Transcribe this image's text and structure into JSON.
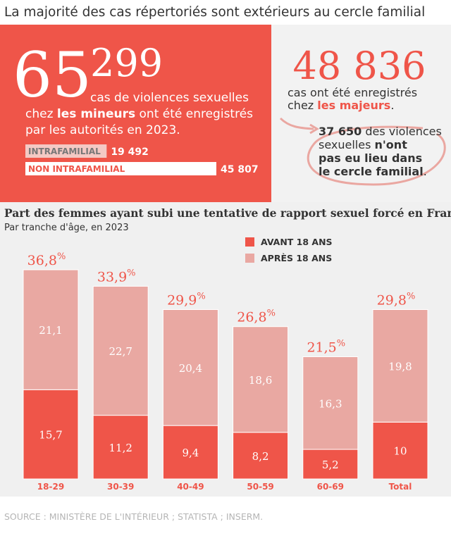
{
  "header": {
    "title": "La majorité des cas répertoriés sont extérieurs au cercle familial"
  },
  "minors": {
    "figure_lead": "65",
    "figure_tail": "299",
    "line_1": "cas de violences sexuelles",
    "line_2_a": "chez ",
    "line_2_bold": "les mineurs",
    "line_2_b": " ont été enregistrés",
    "line_3": "par les autorités en 2023."
  },
  "majors": {
    "figure": "48 836",
    "line_1": "cas ont été enregistrés",
    "line_2_a": "chez ",
    "line_2_bold": "les majeurs",
    "line_2_b": "."
  },
  "note": {
    "line_1_bold": "37 650",
    "line_1": " des violences",
    "line_2": "sexuelles ",
    "line_2_bold": "n'ont",
    "line_3_bold": "pas eu lieu dans",
    "line_4_bold": "le cercle familial",
    "line_4": "."
  },
  "chart_data": [
    {
      "type": "hbar",
      "categories": [
        "INTRAFAMILIAL",
        "NON INTRAFAMILIAL"
      ],
      "values": [
        19492,
        45807
      ],
      "value_labels": [
        "19 492",
        "45 807"
      ],
      "colors": [
        "#f4c9c4",
        "#ffffff"
      ]
    },
    {
      "type": "stacked_bar",
      "title": "Part des femmes ayant subi une tentative de rapport sexuel forcé en France",
      "subtitle": "Par tranche d'âge, en 2023",
      "categories": [
        "18-29",
        "30-39",
        "40-49",
        "50-59",
        "60-69",
        "Total"
      ],
      "series": [
        {
          "name": "AVANT 18 ANS",
          "color": "#ef5549",
          "values": [
            15.7,
            11.2,
            9.4,
            8.2,
            5.2,
            10
          ],
          "value_labels": [
            "15,7",
            "11,2",
            "9,4",
            "8,2",
            "5,2",
            "10"
          ]
        },
        {
          "name": "APRÈS 18 ANS",
          "color": "#e9a8a2",
          "values": [
            21.1,
            22.7,
            20.4,
            18.6,
            16.3,
            19.8
          ],
          "value_labels": [
            "21,1",
            "22,7",
            "20,4",
            "18,6",
            "16,3",
            "19,8"
          ]
        }
      ],
      "totals": [
        36.8,
        33.9,
        29.9,
        26.8,
        21.5,
        29.8
      ],
      "total_labels": [
        "36,8",
        "33,9",
        "29,9",
        "26,8",
        "21,5",
        "29,8"
      ],
      "total_unit": "%",
      "legend": "top-right"
    }
  ],
  "footer": {
    "source": "SOURCE : MINISTÈRE DE L'INTÉRIEUR ; STATISTA ; INSERM."
  }
}
